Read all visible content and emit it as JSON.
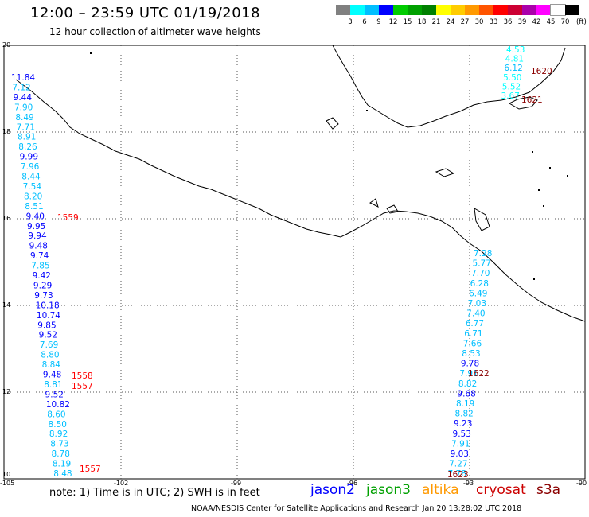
{
  "header": {
    "title": "12:00 – 23:59 UTC 01/19/2018",
    "subtitle": "12 hour collection of altimeter wave heights"
  },
  "colorbar": {
    "colors": [
      "#808080",
      "#00ffff",
      "#00bfff",
      "#0000ff",
      "#00cc00",
      "#00a000",
      "#008000",
      "#ffff00",
      "#ffcc00",
      "#ff9900",
      "#ff5500",
      "#ff0000",
      "#cc0033",
      "#aa00aa",
      "#ff00ff",
      "#ffffff",
      "#000000"
    ],
    "labels": [
      "3",
      "6",
      "9",
      "12",
      "15",
      "18",
      "21",
      "24",
      "27",
      "30",
      "33",
      "36",
      "39",
      "42",
      "45",
      "70"
    ],
    "unit": "(ft)"
  },
  "axes": {
    "lat_labels": [
      "20",
      "18",
      "16",
      "14",
      "12",
      "10"
    ],
    "lon_labels": [
      "-105",
      "-102",
      "-99",
      "-96",
      "-93",
      "-90"
    ]
  },
  "tracks": {
    "left_values": [
      "11.84",
      "7.12",
      "9.44",
      "7.90",
      "8.49",
      "7.71",
      "8.91",
      "8.26",
      "9.99",
      "7.96",
      "8.44",
      "7.54",
      "8.20",
      "8.51",
      "9.40",
      "9.95",
      "9.94",
      "9.48",
      "9.74",
      "7.85",
      "9.42",
      "9.29",
      "9.73",
      "10.18",
      "10.74",
      "9.85",
      "9.52",
      "7.69",
      "8.80",
      "8.84",
      "9.48",
      "8.81",
      "9.52",
      "10.82",
      "8.60",
      "8.50",
      "8.92",
      "8.73",
      "8.78",
      "8.19",
      "8.48"
    ],
    "left_colors": [
      "#0000ff",
      "#00bfff",
      "#0000ff",
      "#00bfff",
      "#00bfff",
      "#00bfff",
      "#00bfff",
      "#00bfff",
      "#0000ff",
      "#00bfff",
      "#00bfff",
      "#00bfff",
      "#00bfff",
      "#00bfff",
      "#0000ff",
      "#0000ff",
      "#0000ff",
      "#0000ff",
      "#0000ff",
      "#00bfff",
      "#0000ff",
      "#0000ff",
      "#0000ff",
      "#0000ff",
      "#0000ff",
      "#0000ff",
      "#0000ff",
      "#00bfff",
      "#00bfff",
      "#00bfff",
      "#0000ff",
      "#00bfff",
      "#0000ff",
      "#0000ff",
      "#00bfff",
      "#00bfff",
      "#00bfff",
      "#00bfff",
      "#00bfff",
      "#00bfff",
      "#00bfff"
    ],
    "right_values": [
      "7.28",
      "5.77",
      "7.70",
      "6.28",
      "6.49",
      "7.03",
      "7.40",
      "6.77",
      "6.71",
      "7.66",
      "8.53",
      "9.78",
      "7.91",
      "8.82",
      "9.68",
      "8.19",
      "8.82",
      "9.23",
      "9.53",
      "7.91",
      "9.03",
      "7.27",
      "7.78"
    ],
    "right_colors": [
      "#00bfff",
      "#00bfff",
      "#00bfff",
      "#00bfff",
      "#00bfff",
      "#00bfff",
      "#00bfff",
      "#00bfff",
      "#00bfff",
      "#00bfff",
      "#00bfff",
      "#0000ff",
      "#00bfff",
      "#00bfff",
      "#0000ff",
      "#00bfff",
      "#00bfff",
      "#0000ff",
      "#0000ff",
      "#00bfff",
      "#0000ff",
      "#00bfff",
      "#00bfff"
    ],
    "top_values": [
      "4.53",
      "4.81",
      "6.12",
      "5.50",
      "5.52",
      "3.67"
    ],
    "top_colors": [
      "#00ffff",
      "#00ffff",
      "#00bfff",
      "#00ffff",
      "#00ffff",
      "#00ffff"
    ]
  },
  "pass_labels": {
    "p1559": "1559",
    "p1558": "1558",
    "p1557a": "1557",
    "p1557b": "1557",
    "p1622": "1622",
    "p1623": "1623",
    "p1620": "1620",
    "p1621": "1621"
  },
  "pass_colors": {
    "red": "#ff0000",
    "darkred": "#8b0000"
  },
  "note": "note:  1) Time is in UTC;  2) SWH is in feet",
  "legend": [
    {
      "name": "jason2",
      "color": "#0000ff"
    },
    {
      "name": "jason3",
      "color": "#00a000"
    },
    {
      "name": "altika",
      "color": "#ff9900"
    },
    {
      "name": "cryosat",
      "color": "#cc0000"
    },
    {
      "name": "s3a",
      "color": "#8b0000"
    }
  ],
  "footer": "NOAA/NESDIS Center for Satellite Applications and Research    Jan 20 13:28:02 UTC 2018"
}
